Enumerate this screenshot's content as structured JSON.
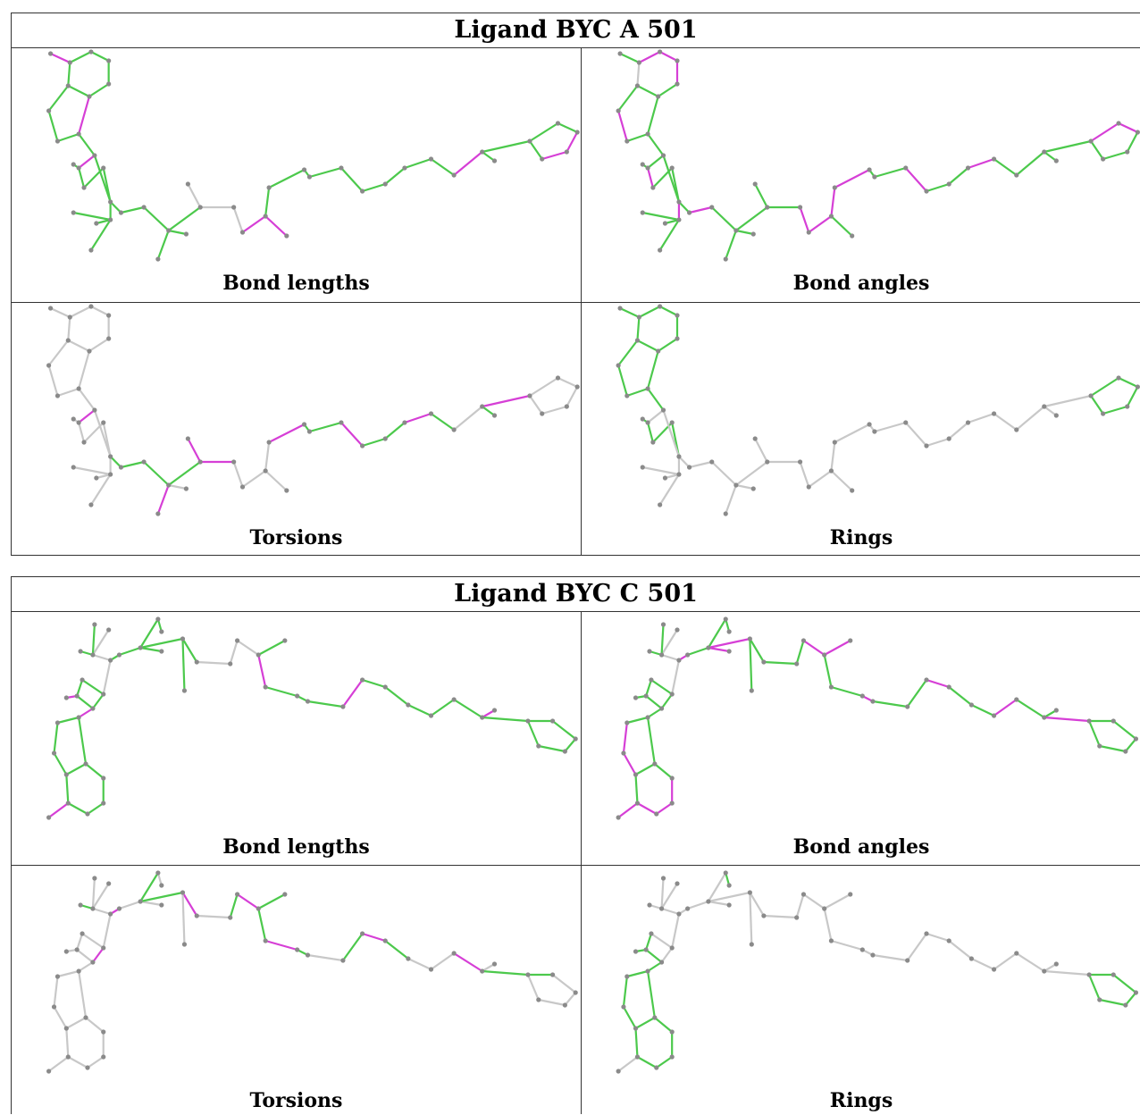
{
  "tables": [
    {
      "id": "A",
      "title": "Ligand BYC A 501",
      "panels": [
        {
          "caption": "Bond lengths",
          "scheme": "len"
        },
        {
          "caption": "Bond angles",
          "scheme": "ang"
        },
        {
          "caption": "Torsions",
          "scheme": "tor"
        },
        {
          "caption": "Rings",
          "scheme": "ring"
        }
      ]
    },
    {
      "id": "C",
      "title": "Ligand BYC C 501",
      "panels": [
        {
          "caption": "Bond lengths",
          "scheme": "len"
        },
        {
          "caption": "Bond angles",
          "scheme": "ang"
        },
        {
          "caption": "Torsions",
          "scheme": "tor"
        },
        {
          "caption": "Rings",
          "scheme": "ring"
        }
      ]
    }
  ],
  "colors": {
    "green": "#4cc94c",
    "magenta": "#d63fd6",
    "gray": "#c8c8c8",
    "atom": "#8a8a8a",
    "border": "#333333"
  }
}
